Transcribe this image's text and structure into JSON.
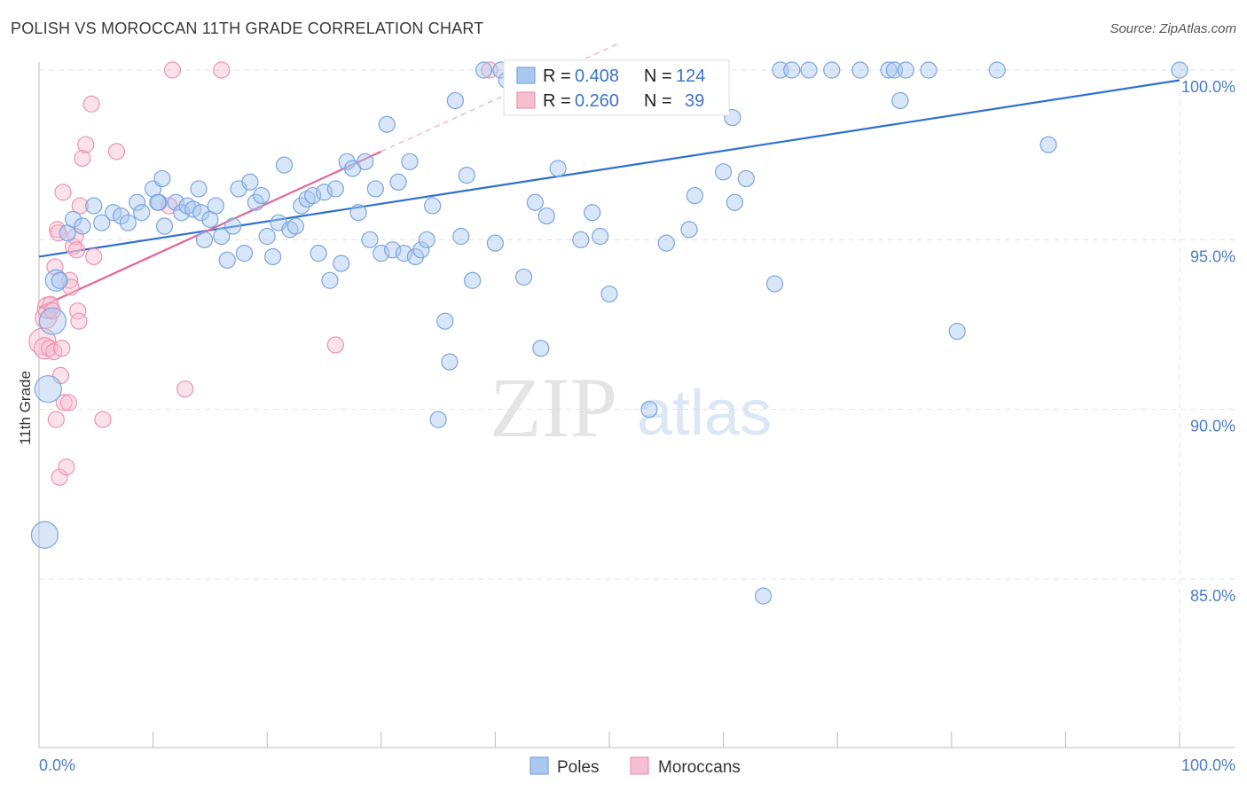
{
  "header": {
    "title": "POLISH VS MOROCCAN 11TH GRADE CORRELATION CHART",
    "source": "Source: ZipAtlas.com"
  },
  "watermark": {
    "zip": "ZIP",
    "atlas": "atlas"
  },
  "legend_stats": {
    "poles": {
      "r_label": "R =",
      "r_value": "0.408",
      "n_label": "N =",
      "n_value": "124"
    },
    "moroccans": {
      "r_label": "R =",
      "r_value": "0.260",
      "n_label": "N =",
      "n_value": "39"
    }
  },
  "colors": {
    "poles_fill": "#a9c8f0",
    "poles_stroke": "#7aa5de",
    "poles_line": "#2f6fd0",
    "moroccans_fill": "#f6bfd0",
    "moroccans_stroke": "#ee93b0",
    "moroccans_line": "#e0659a",
    "grid": "#e0e0e0",
    "tick_label": "#4a7cc7"
  },
  "chart_data": {
    "type": "scatter",
    "title": "POLISH VS MOROCCAN 11TH GRADE CORRELATION CHART",
    "ylabel": "11th Grade",
    "xlim": [
      0,
      100
    ],
    "ylim": [
      80.5,
      100.8
    ],
    "x_tick_labels": [
      "0.0%",
      "100.0%"
    ],
    "y_ticks": [
      85,
      90,
      95,
      100
    ],
    "y_tick_labels": [
      "85.0%",
      "90.0%",
      "95.0%",
      "100.0%"
    ],
    "grid": true,
    "legend": "bottom-center",
    "series": [
      {
        "name": "Poles",
        "r": 0.408,
        "n": 124,
        "trend": {
          "x": [
            0,
            100
          ],
          "y": [
            94.5,
            99.7
          ],
          "style": "solid"
        },
        "points": [
          [
            0.5,
            86.3,
            2
          ],
          [
            0.8,
            90.6,
            2
          ],
          [
            1.2,
            92.6,
            2
          ],
          [
            1.5,
            93.8,
            1.5
          ],
          [
            1.8,
            93.8,
            1
          ],
          [
            2.5,
            95.2,
            1
          ],
          [
            3,
            95.6,
            1
          ],
          [
            3.8,
            95.4,
            1
          ],
          [
            4.8,
            96.0,
            1
          ],
          [
            5.5,
            95.5,
            1
          ],
          [
            6.5,
            95.8,
            1
          ],
          [
            7.2,
            95.7,
            1
          ],
          [
            7.8,
            95.5,
            1
          ],
          [
            8.6,
            96.1,
            1
          ],
          [
            9,
            95.8,
            1
          ],
          [
            10,
            96.5,
            1
          ],
          [
            10.5,
            96.1,
            1
          ],
          [
            10.4,
            96.1,
            1
          ],
          [
            10.8,
            96.8,
            1
          ],
          [
            11,
            95.4,
            1
          ],
          [
            12,
            96.1,
            1
          ],
          [
            12.5,
            95.8,
            1
          ],
          [
            13,
            96.0,
            1
          ],
          [
            13.5,
            95.9,
            1
          ],
          [
            14,
            96.5,
            1
          ],
          [
            14.2,
            95.8,
            1
          ],
          [
            14.5,
            95.0,
            1
          ],
          [
            15,
            95.6,
            1
          ],
          [
            15.5,
            96.0,
            1
          ],
          [
            16,
            95.1,
            1
          ],
          [
            16.5,
            94.4,
            1
          ],
          [
            17,
            95.4,
            1
          ],
          [
            17.5,
            96.5,
            1
          ],
          [
            18,
            94.6,
            1
          ],
          [
            18.5,
            96.7,
            1
          ],
          [
            19,
            96.1,
            1
          ],
          [
            19.5,
            96.3,
            1
          ],
          [
            20,
            95.1,
            1
          ],
          [
            20.5,
            94.5,
            1
          ],
          [
            21,
            95.5,
            1
          ],
          [
            21.5,
            97.2,
            1
          ],
          [
            22,
            95.3,
            1
          ],
          [
            22.5,
            95.4,
            1
          ],
          [
            23,
            96.0,
            1
          ],
          [
            23.5,
            96.2,
            1
          ],
          [
            24,
            96.3,
            1
          ],
          [
            24.5,
            94.6,
            1
          ],
          [
            25,
            96.4,
            1
          ],
          [
            25.5,
            93.8,
            1
          ],
          [
            26,
            96.5,
            1
          ],
          [
            26.5,
            94.3,
            1
          ],
          [
            27,
            97.3,
            1
          ],
          [
            27.5,
            97.1,
            1
          ],
          [
            28,
            95.8,
            1
          ],
          [
            28.6,
            97.3,
            1
          ],
          [
            29,
            95.0,
            1
          ],
          [
            29.5,
            96.5,
            1
          ],
          [
            30,
            94.6,
            1
          ],
          [
            30.5,
            98.4,
            1
          ],
          [
            31,
            94.7,
            1
          ],
          [
            31.5,
            96.7,
            1
          ],
          [
            32,
            94.6,
            1
          ],
          [
            32.5,
            97.3,
            1
          ],
          [
            33,
            94.5,
            1
          ],
          [
            33.5,
            94.7,
            1
          ],
          [
            34,
            95.0,
            1
          ],
          [
            34.5,
            96.0,
            1
          ],
          [
            35,
            89.7,
            1
          ],
          [
            35.6,
            92.6,
            1
          ],
          [
            36,
            91.4,
            1
          ],
          [
            36.5,
            99.1,
            1
          ],
          [
            37,
            95.1,
            1
          ],
          [
            37.5,
            96.9,
            1
          ],
          [
            38,
            93.8,
            1
          ],
          [
            39,
            100.0,
            1
          ],
          [
            40,
            94.9,
            1
          ],
          [
            40.5,
            100.0,
            1
          ],
          [
            41,
            99.7,
            1
          ],
          [
            41.5,
            99.6,
            1
          ],
          [
            41.8,
            99.2,
            1
          ],
          [
            42.5,
            93.9,
            1
          ],
          [
            43.5,
            96.1,
            1
          ],
          [
            44,
            91.8,
            1
          ],
          [
            44.5,
            95.7,
            1
          ],
          [
            45,
            100.0,
            1
          ],
          [
            45.5,
            97.1,
            1
          ],
          [
            46,
            99.8,
            1
          ],
          [
            47,
            100.0,
            1
          ],
          [
            47.5,
            95.0,
            1
          ],
          [
            48,
            99.4,
            1
          ],
          [
            48.5,
            95.8,
            1
          ],
          [
            49.2,
            95.1,
            1
          ],
          [
            49.5,
            100.0,
            1
          ],
          [
            50,
            93.4,
            1
          ],
          [
            51,
            100.0,
            1
          ],
          [
            51.5,
            99.8,
            1
          ],
          [
            52,
            100.0,
            1
          ],
          [
            53,
            100.0,
            1
          ],
          [
            53.5,
            90.0,
            1
          ],
          [
            54.5,
            100.0,
            1
          ],
          [
            55,
            94.9,
            1
          ],
          [
            56,
            99.5,
            1
          ],
          [
            57,
            95.3,
            1
          ],
          [
            57.5,
            96.3,
            1
          ],
          [
            58.5,
            100.0,
            1
          ],
          [
            59.5,
            99.8,
            1
          ],
          [
            60,
            97.0,
            1
          ],
          [
            60.8,
            98.6,
            1
          ],
          [
            61,
            96.1,
            1
          ],
          [
            62,
            96.8,
            1
          ],
          [
            63.5,
            84.5,
            1
          ],
          [
            64.5,
            93.7,
            1
          ],
          [
            65,
            100.0,
            1
          ],
          [
            66,
            100.0,
            1
          ],
          [
            67.5,
            100.0,
            1
          ],
          [
            69.5,
            100.0,
            1
          ],
          [
            72,
            100.0,
            1
          ],
          [
            74.5,
            100.0,
            1
          ],
          [
            75,
            100.0,
            1
          ],
          [
            75.5,
            99.1,
            1
          ],
          [
            76,
            100.0,
            1
          ],
          [
            78,
            100.0,
            1
          ],
          [
            80.5,
            92.3,
            1
          ],
          [
            84,
            100.0,
            1
          ],
          [
            88.5,
            97.8,
            1
          ],
          [
            100,
            100.0,
            1
          ]
        ]
      },
      {
        "name": "Moroccans",
        "r": 0.26,
        "n": 39,
        "trend": {
          "x": [
            0,
            30,
            100
          ],
          "y": [
            93.0,
            97.6,
            108.3
          ],
          "style": "solid-then-dashed"
        },
        "points": [
          [
            0.3,
            92.0,
            2
          ],
          [
            0.5,
            91.8,
            1.5
          ],
          [
            0.6,
            92.7,
            1.5
          ],
          [
            0.8,
            93.0,
            1.5
          ],
          [
            0.9,
            91.8,
            1
          ],
          [
            1,
            93.1,
            1
          ],
          [
            1.2,
            92.9,
            1
          ],
          [
            1.3,
            91.7,
            1
          ],
          [
            1.4,
            94.2,
            1
          ],
          [
            1.5,
            89.7,
            1
          ],
          [
            1.6,
            95.3,
            1
          ],
          [
            1.7,
            95.2,
            1
          ],
          [
            1.8,
            88.0,
            1
          ],
          [
            1.9,
            91.0,
            1
          ],
          [
            2,
            91.8,
            1
          ],
          [
            2.1,
            96.4,
            1
          ],
          [
            2.2,
            90.2,
            1
          ],
          [
            2.4,
            88.3,
            1
          ],
          [
            2.6,
            90.2,
            1
          ],
          [
            2.7,
            93.8,
            1
          ],
          [
            2.8,
            93.6,
            1
          ],
          [
            3,
            94.8,
            1
          ],
          [
            3.2,
            95.1,
            1
          ],
          [
            3.3,
            94.7,
            1
          ],
          [
            3.4,
            92.9,
            1
          ],
          [
            3.5,
            92.6,
            1
          ],
          [
            3.6,
            96.0,
            1
          ],
          [
            3.8,
            97.4,
            1
          ],
          [
            4.1,
            97.8,
            1
          ],
          [
            4.6,
            99.0,
            1
          ],
          [
            4.8,
            94.5,
            1
          ],
          [
            5.6,
            89.7,
            1
          ],
          [
            6.8,
            97.6,
            1
          ],
          [
            11.4,
            96.0,
            1
          ],
          [
            11.7,
            100.0,
            1
          ],
          [
            12.8,
            90.6,
            1
          ],
          [
            16,
            100.0,
            1
          ],
          [
            26,
            91.9,
            1
          ],
          [
            39.5,
            100.0,
            1
          ]
        ]
      }
    ]
  },
  "bottom_legend": {
    "poles": "Poles",
    "moroccans": "Moroccans"
  }
}
